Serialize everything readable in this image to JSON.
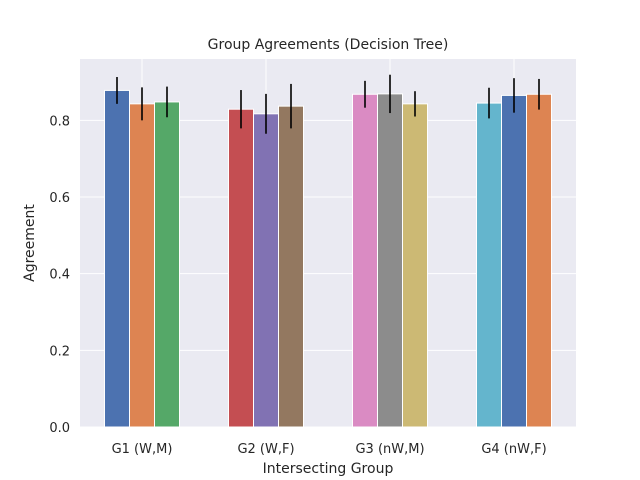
{
  "chart_data": {
    "type": "bar",
    "title": "Group Agreements (Decision Tree)",
    "xlabel": "Intersecting Group",
    "ylabel": "Agreement",
    "ylim": [
      0,
      0.96
    ],
    "yticks": [
      "0.0",
      "0.2",
      "0.4",
      "0.6",
      "0.8"
    ],
    "grid": true,
    "legend": "none",
    "categories": [
      "G1 (W,M)",
      "G2 (W,F)",
      "G3 (nW,M)",
      "G4 (nW,F)"
    ],
    "groups": [
      {
        "category": "G1 (W,M)",
        "bars": [
          {
            "value": 0.878,
            "err": 0.035,
            "color": "#4c72b0"
          },
          {
            "value": 0.843,
            "err": 0.043,
            "color": "#dd8452"
          },
          {
            "value": 0.848,
            "err": 0.04,
            "color": "#55a868"
          }
        ]
      },
      {
        "category": "G2 (W,F)",
        "bars": [
          {
            "value": 0.829,
            "err": 0.05,
            "color": "#c44e52"
          },
          {
            "value": 0.817,
            "err": 0.052,
            "color": "#8172b3"
          },
          {
            "value": 0.837,
            "err": 0.058,
            "color": "#937860"
          }
        ]
      },
      {
        "category": "G3 (nW,M)",
        "bars": [
          {
            "value": 0.868,
            "err": 0.035,
            "color": "#da8bc3"
          },
          {
            "value": 0.869,
            "err": 0.05,
            "color": "#8c8c8c"
          },
          {
            "value": 0.843,
            "err": 0.033,
            "color": "#ccb974"
          }
        ]
      },
      {
        "category": "G4 (nW,F)",
        "bars": [
          {
            "value": 0.845,
            "err": 0.04,
            "color": "#64b5cd"
          },
          {
            "value": 0.865,
            "err": 0.045,
            "color": "#4c72b0"
          },
          {
            "value": 0.868,
            "err": 0.04,
            "color": "#dd8452"
          }
        ]
      }
    ]
  }
}
